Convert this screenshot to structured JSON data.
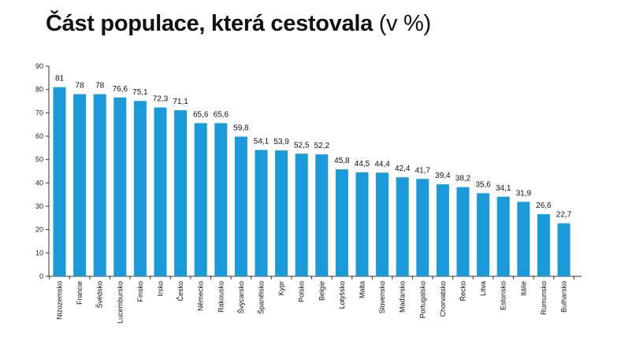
{
  "title": "Část populace, která cestovala",
  "title_unit": "(v %)",
  "chart_data": {
    "type": "bar",
    "title": "Část populace, která cestovala (v %)",
    "categories": [
      "Nizozemsko",
      "Francie",
      "Švédsko",
      "Lucembursko",
      "Finsko",
      "Irsko",
      "Česko",
      "Německo",
      "Rakousko",
      "Švýcarsko",
      "Španělsko",
      "Kypr",
      "Polsko",
      "Belgie",
      "Lotyšsko",
      "Malta",
      "Slovensko",
      "Maďarsko",
      "Portugalsko",
      "Chorvatsko",
      "Řecko",
      "Litva",
      "Estonsko",
      "Itálie",
      "Rumunsko",
      "Bulharsko"
    ],
    "values": [
      81,
      78,
      78,
      76.6,
      75.1,
      72.3,
      71.1,
      65.6,
      65.6,
      59.8,
      54.1,
      53.9,
      52.5,
      52.2,
      45.8,
      44.5,
      44.4,
      42.4,
      41.7,
      39.4,
      38.2,
      35.6,
      34.1,
      31.9,
      26.6,
      22.7
    ],
    "value_labels": [
      "81",
      "78",
      "78",
      "76,6",
      "75,1",
      "72,3",
      "71,1",
      "65,6",
      "65,6",
      "59,8",
      "54,1",
      "53,9",
      "52,5",
      "52,2",
      "45,8",
      "44,5",
      "44,4",
      "42,4",
      "41,7",
      "39,4",
      "38,2",
      "35,6",
      "34,1",
      "31,9",
      "26,6",
      "22,7"
    ],
    "yticks": [
      0,
      10,
      20,
      30,
      40,
      50,
      60,
      70,
      80,
      90
    ],
    "ylim": [
      0,
      90
    ],
    "xlabel": "",
    "ylabel": "",
    "grid": false,
    "legend": "none",
    "bar_color": "#1a9ad9"
  }
}
